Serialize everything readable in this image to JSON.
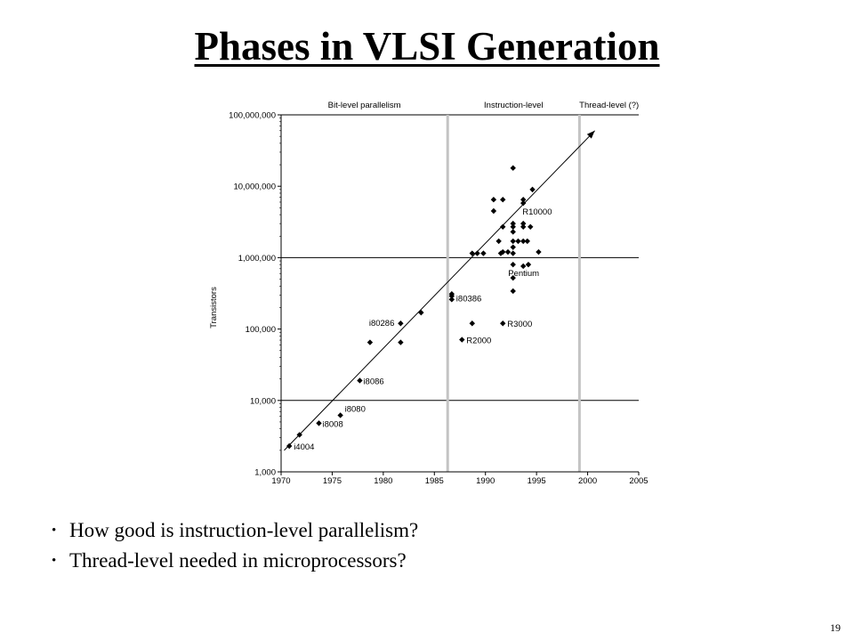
{
  "slide": {
    "title": "Phases in VLSI Generation",
    "bullets": [
      "How good is instruction-level parallelism?",
      "Thread-level needed in microprocessors?"
    ],
    "page_number": "19"
  },
  "chart_data": {
    "type": "scatter",
    "ylabel": "Transistors",
    "y_scale": "log",
    "xlim": [
      1970,
      2005
    ],
    "ylim": [
      1000,
      100000000
    ],
    "x_ticks": [
      "1970",
      "1975",
      "1980",
      "1985",
      "1990",
      "1995",
      "2000",
      "2005"
    ],
    "y_ticks": [
      "1,000",
      "10,000",
      "100,000",
      "1,000,000",
      "10,000,000",
      "100,000,000"
    ],
    "grid": "horizontal lines at 10,000, 1,000,000 and 100,000,000",
    "phases": [
      {
        "label": "Bit-level parallelism",
        "from": 1970,
        "to": 1986.3
      },
      {
        "label": "Instruction-level",
        "from": 1986.3,
        "to": 1999.2
      },
      {
        "label": "Thread-level (?)",
        "from": 1999.2,
        "to": 2005
      }
    ],
    "phase_boundaries": [
      1986.3,
      1999.2
    ],
    "trend_line": {
      "from": [
        1970.3,
        2000
      ],
      "to": [
        2000.7,
        60000000
      ]
    },
    "points": [
      {
        "x": 1970.8,
        "y": 2300,
        "label": "i4004"
      },
      {
        "x": 1971.8,
        "y": 3300
      },
      {
        "x": 1973.7,
        "y": 4800,
        "label": "i8008"
      },
      {
        "x": 1975.8,
        "y": 6200,
        "label": "i8080"
      },
      {
        "x": 1977.7,
        "y": 19000,
        "label": "i8086"
      },
      {
        "x": 1978.7,
        "y": 65000
      },
      {
        "x": 1981.7,
        "y": 120000,
        "label": "i80286"
      },
      {
        "x": 1981.7,
        "y": 65000
      },
      {
        "x": 1983.7,
        "y": 170000
      },
      {
        "x": 1986.7,
        "y": 290000,
        "label": "i80386"
      },
      {
        "x": 1986.7,
        "y": 260000
      },
      {
        "x": 1986.7,
        "y": 310000
      },
      {
        "x": 1987.7,
        "y": 71000,
        "label": "R2000"
      },
      {
        "x": 1988.7,
        "y": 120000
      },
      {
        "x": 1991.7,
        "y": 120000,
        "label": "R3000"
      },
      {
        "x": 1988.7,
        "y": 1150000
      },
      {
        "x": 1989.2,
        "y": 1150000
      },
      {
        "x": 1989.8,
        "y": 1150000
      },
      {
        "x": 1990.8,
        "y": 6500000
      },
      {
        "x": 1990.8,
        "y": 4500000
      },
      {
        "x": 1991.3,
        "y": 1700000
      },
      {
        "x": 1991.5,
        "y": 1150000
      },
      {
        "x": 1991.7,
        "y": 1200000
      },
      {
        "x": 1991.7,
        "y": 6500000
      },
      {
        "x": 1991.7,
        "y": 2700000
      },
      {
        "x": 1992.2,
        "y": 1200000
      },
      {
        "x": 1992.7,
        "y": 18000000
      },
      {
        "x": 1992.7,
        "y": 3000000
      },
      {
        "x": 1992.7,
        "y": 2700000
      },
      {
        "x": 1992.7,
        "y": 2300000
      },
      {
        "x": 1992.7,
        "y": 1700000
      },
      {
        "x": 1992.7,
        "y": 1400000
      },
      {
        "x": 1992.7,
        "y": 1150000
      },
      {
        "x": 1992.7,
        "y": 800000
      },
      {
        "x": 1992.7,
        "y": 520000
      },
      {
        "x": 1992.7,
        "y": 340000
      },
      {
        "x": 1993.2,
        "y": 1700000
      },
      {
        "x": 1993.7,
        "y": 6500000
      },
      {
        "x": 1993.7,
        "y": 5800000,
        "label": "R10000"
      },
      {
        "x": 1993.7,
        "y": 3000000
      },
      {
        "x": 1993.7,
        "y": 2700000
      },
      {
        "x": 1993.7,
        "y": 1700000
      },
      {
        "x": 1993.7,
        "y": 760000,
        "label": "Pentium"
      },
      {
        "x": 1994.1,
        "y": 1700000
      },
      {
        "x": 1994.2,
        "y": 800000
      },
      {
        "x": 1994.4,
        "y": 2700000
      },
      {
        "x": 1994.6,
        "y": 9000000
      },
      {
        "x": 1995.2,
        "y": 1200000
      }
    ]
  }
}
